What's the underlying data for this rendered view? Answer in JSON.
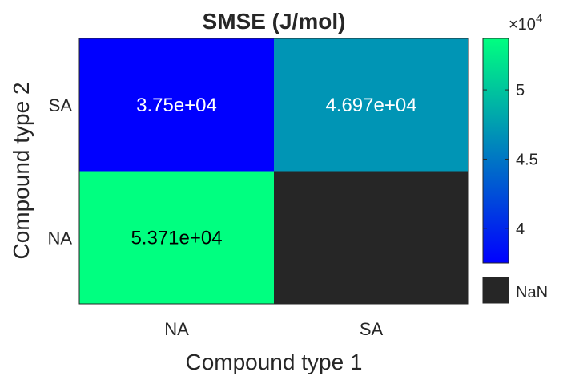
{
  "chart_data": {
    "type": "heatmap",
    "title": "SMSE (J/mol)",
    "xlabel": "Compound type 1",
    "ylabel": "Compound type 2",
    "x_categories": [
      "NA",
      "SA"
    ],
    "y_categories": [
      "SA",
      "NA"
    ],
    "cells": [
      {
        "x": "NA",
        "y": "SA",
        "value": 37500,
        "label": "3.75e+04"
      },
      {
        "x": "SA",
        "y": "SA",
        "value": 46970,
        "label": "4.697e+04"
      },
      {
        "x": "NA",
        "y": "NA",
        "value": 53710,
        "label": "5.371e+04"
      },
      {
        "x": "SA",
        "y": "NA",
        "value": null,
        "label": ""
      }
    ],
    "colorbar": {
      "range": [
        37500,
        53710
      ],
      "ticks": [
        {
          "value": 40000,
          "label": "4"
        },
        {
          "value": 45000,
          "label": "4.5"
        },
        {
          "value": 50000,
          "label": "5"
        }
      ],
      "exponent_base": "×10",
      "exponent": "4",
      "colormap": [
        "#0000ff",
        "#00ff80"
      ],
      "nan_label": "NaN",
      "nan_color": "#262626"
    },
    "colors": {
      "text_dark_bg": "#ffffff",
      "text_light_bg": "#000000",
      "axis": "#262626"
    }
  }
}
